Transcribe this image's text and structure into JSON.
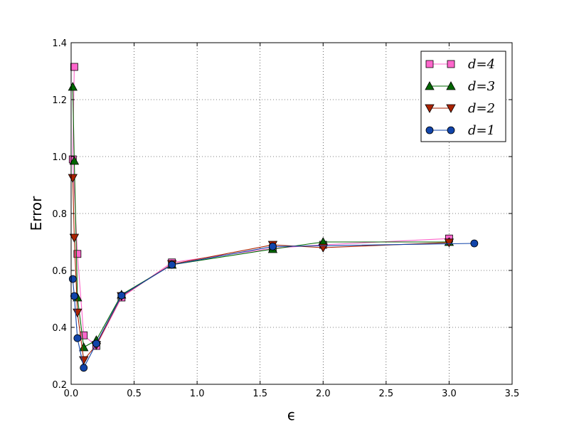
{
  "chart_data": {
    "type": "line",
    "xlabel": "ϵ",
    "ylabel": "Error",
    "xlim": [
      0,
      3.5
    ],
    "ylim": [
      0.2,
      1.4
    ],
    "x_ticks": [
      "0.0",
      "0.5",
      "1.0",
      "1.5",
      "2.0",
      "2.5",
      "3.0",
      "3.5"
    ],
    "y_ticks": [
      "0.2",
      "0.4",
      "0.6",
      "0.8",
      "1.0",
      "1.2",
      "1.4"
    ],
    "grid": true,
    "legend_position": "top-right",
    "series": [
      {
        "name": "d=4",
        "color": "#ff66cc",
        "marker": "square",
        "points": [
          [
            0.025,
            1.315
          ],
          [
            0.013,
            0.99
          ],
          [
            0.05,
            0.658
          ],
          [
            0.1,
            0.372
          ],
          [
            0.2,
            0.335
          ],
          [
            0.4,
            0.505
          ],
          [
            0.8,
            0.628
          ],
          [
            1.6,
            0.678
          ],
          [
            2.0,
            0.69
          ],
          [
            3.0,
            0.712
          ]
        ]
      },
      {
        "name": "d=3",
        "color": "#006600",
        "marker": "triangle-up",
        "points": [
          [
            0.013,
            1.245
          ],
          [
            0.025,
            0.985
          ],
          [
            0.05,
            0.505
          ],
          [
            0.1,
            0.33
          ],
          [
            0.2,
            0.355
          ],
          [
            0.4,
            0.515
          ],
          [
            0.8,
            0.62
          ],
          [
            1.6,
            0.675
          ],
          [
            2.0,
            0.7
          ],
          [
            3.0,
            0.7
          ]
        ]
      },
      {
        "name": "d=2",
        "color": "#aa2200",
        "marker": "triangle-down",
        "points": [
          [
            0.013,
            0.925
          ],
          [
            0.025,
            0.715
          ],
          [
            0.05,
            0.452
          ],
          [
            0.1,
            0.285
          ],
          [
            0.2,
            0.338
          ],
          [
            0.4,
            0.51
          ],
          [
            0.8,
            0.622
          ],
          [
            1.6,
            0.69
          ],
          [
            2.0,
            0.68
          ],
          [
            3.0,
            0.698
          ]
        ]
      },
      {
        "name": "d=1",
        "color": "#1144aa",
        "marker": "circle",
        "points": [
          [
            0.013,
            0.57
          ],
          [
            0.025,
            0.51
          ],
          [
            0.05,
            0.362
          ],
          [
            0.1,
            0.258
          ],
          [
            0.2,
            0.343
          ],
          [
            0.4,
            0.512
          ],
          [
            0.8,
            0.62
          ],
          [
            1.6,
            0.684
          ],
          [
            3.2,
            0.695
          ]
        ]
      }
    ]
  }
}
